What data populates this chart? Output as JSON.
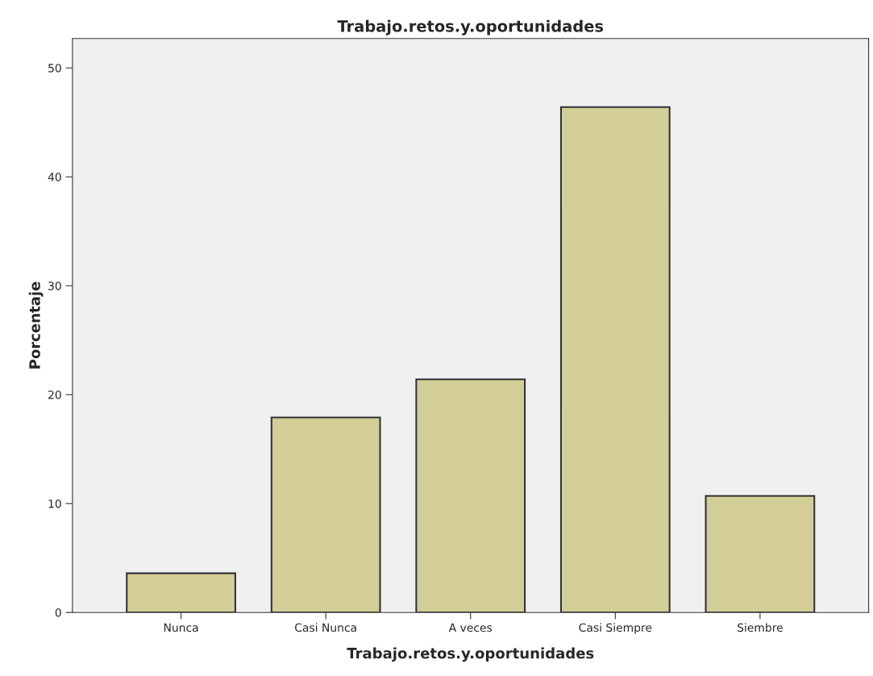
{
  "chart_data": {
    "type": "bar",
    "title": "Trabajo.retos.y.oportunidades",
    "xlabel": "Trabajo.retos.y.oportunidades",
    "ylabel": "Porcentaje",
    "categories": [
      "Nunca",
      "Casi Nunca",
      "A veces",
      "Casi Siempre",
      "Siembre"
    ],
    "values": [
      3.6,
      17.9,
      21.4,
      46.4,
      10.7
    ],
    "color": "#d3ce98",
    "ylim": [
      0,
      52.7
    ],
    "yticks": [
      0,
      10,
      20,
      30,
      40,
      50
    ],
    "grid": false,
    "legend": false
  }
}
